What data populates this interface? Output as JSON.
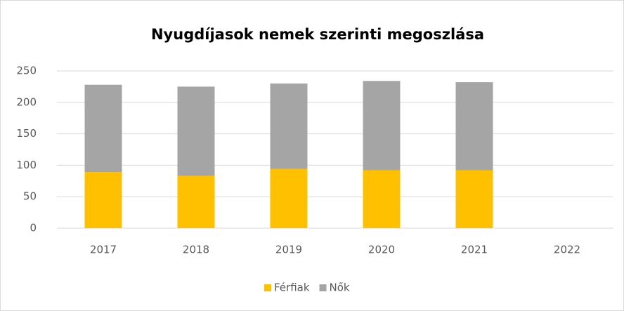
{
  "chart_data": {
    "type": "stacked_bar",
    "title": "Nyugdíjasok nemek szerinti megoszlása",
    "categories": [
      "2017",
      "2018",
      "2019",
      "2020",
      "2021",
      "2022"
    ],
    "series": [
      {
        "name": "Férfiak",
        "color": "#ffc000",
        "values": [
          89,
          83,
          94,
          92,
          92,
          null
        ]
      },
      {
        "name": "Nők",
        "color": "#a5a5a5",
        "values": [
          139,
          142,
          136,
          142,
          140,
          null
        ]
      }
    ],
    "ylim": [
      0,
      250
    ],
    "yticks": [
      0,
      50,
      100,
      150,
      200,
      250
    ],
    "grid": true,
    "legend": "bottom"
  }
}
